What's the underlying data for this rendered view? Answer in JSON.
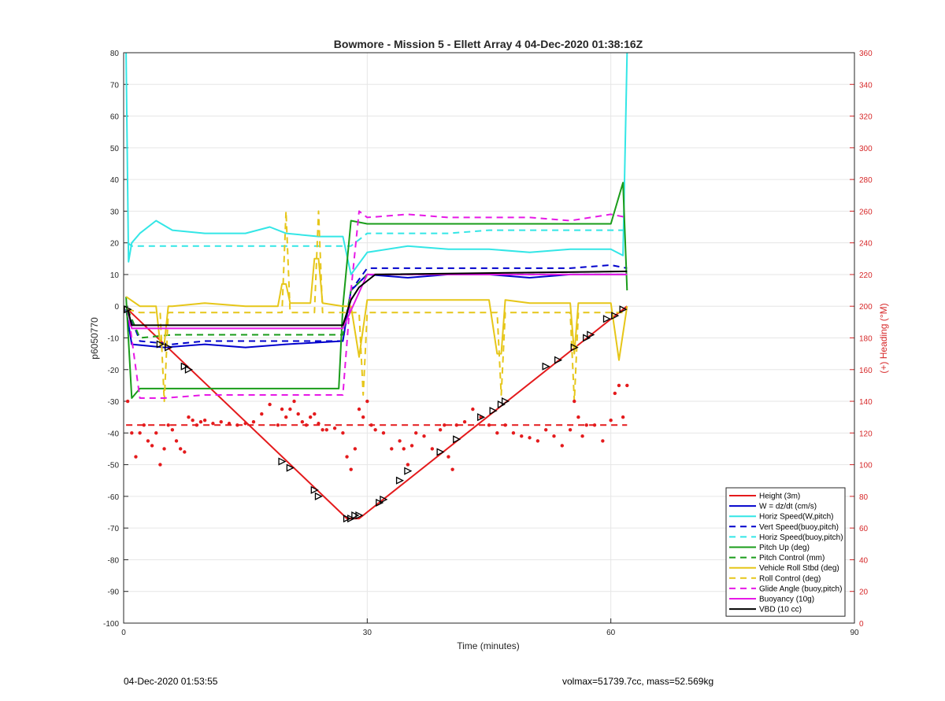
{
  "footer": {
    "left": "04-Dec-2020 01:53:55",
    "right": "volmax=51739.7cc, mass=52.569kg"
  },
  "chart_data": {
    "type": "line",
    "title": "Bowmore - Mission 5 - Ellett Array 4 04-Dec-2020 01:38:16Z",
    "xlabel": "Time (minutes)",
    "ylabel": "p6050770",
    "y2label": "(+) Heading (°M)",
    "xlim": [
      0,
      90
    ],
    "ylim": [
      -100,
      80
    ],
    "y2lim": [
      0,
      360
    ],
    "xticks": [
      0,
      30,
      60,
      90
    ],
    "yticks": [
      -100,
      -90,
      -80,
      -70,
      -60,
      -50,
      -40,
      -30,
      -20,
      -10,
      0,
      10,
      20,
      30,
      40,
      50,
      60,
      70,
      80
    ],
    "y2ticks": [
      0,
      20,
      40,
      60,
      80,
      100,
      120,
      140,
      160,
      180,
      200,
      220,
      240,
      260,
      280,
      300,
      320,
      340,
      360
    ],
    "grid": true,
    "legend_position": "bottom-right",
    "colors": {
      "red": "#e41a1c",
      "blue": "#0000cc",
      "cyan": "#33e6e6",
      "green": "#1a9c1a",
      "yellow": "#e6c619",
      "magenta": "#e619e6",
      "black": "#000000"
    },
    "series": [
      {
        "name": "Height (3m)",
        "color": "red",
        "style": "solid",
        "x": [
          0.5,
          27.5,
          29,
          62
        ],
        "y": [
          -1,
          -67,
          -67,
          0
        ]
      },
      {
        "name": "W = dz/dt (cm/s)",
        "color": "blue",
        "style": "solid",
        "x": [
          0.3,
          1,
          5,
          10,
          15,
          20,
          27,
          28,
          30,
          35,
          40,
          45,
          50,
          55,
          58,
          62
        ],
        "y": [
          -1,
          -12,
          -13,
          -12,
          -13,
          -12,
          -11,
          5,
          10,
          9,
          10,
          10,
          9,
          10,
          10,
          10
        ]
      },
      {
        "name": "Horiz Speed(W,pitch)",
        "color": "cyan",
        "style": "solid",
        "x": [
          0.3,
          0.6,
          1,
          2,
          4,
          6,
          10,
          15,
          18,
          20,
          24,
          27,
          28,
          30,
          35,
          40,
          45,
          50,
          55,
          60,
          61.5,
          62
        ],
        "y": [
          80,
          14,
          20,
          23,
          27,
          24,
          23,
          23,
          25,
          23,
          22,
          22,
          10,
          17,
          19,
          18,
          18,
          17,
          18,
          18,
          16,
          80
        ]
      },
      {
        "name": "Vert Speed(buoy,pitch)",
        "color": "blue",
        "style": "dashed",
        "x": [
          0.5,
          2,
          6,
          10,
          15,
          20,
          27,
          28,
          30,
          35,
          40,
          45,
          50,
          55,
          60,
          62
        ],
        "y": [
          -1,
          -11,
          -12,
          -11,
          -11,
          -11,
          -11,
          5,
          12,
          12,
          12,
          12,
          12,
          12,
          13,
          12
        ]
      },
      {
        "name": "Horiz Speed(buoy,pitch)",
        "color": "cyan",
        "style": "dashed",
        "x": [
          0.5,
          1,
          5,
          10,
          15,
          20,
          27,
          28,
          30,
          35,
          40,
          45,
          50,
          55,
          60,
          62
        ],
        "y": [
          20,
          19,
          19,
          19,
          19,
          19,
          19,
          19,
          23,
          23,
          23,
          24,
          24,
          24,
          24,
          24
        ]
      },
      {
        "name": "Pitch Up (deg)",
        "color": "green",
        "style": "solid",
        "x": [
          0.3,
          1,
          2,
          5,
          10,
          15,
          20,
          26.5,
          27,
          28,
          30,
          35,
          40,
          45,
          50,
          55,
          60,
          61.5,
          62
        ],
        "y": [
          3,
          -29,
          -26,
          -26,
          -26,
          -26,
          -26,
          -26,
          0,
          27,
          26,
          26,
          26,
          26,
          26,
          26,
          26,
          39,
          5
        ]
      },
      {
        "name": "Pitch Control (mm)",
        "color": "green",
        "style": "dashed",
        "x": [
          0.5,
          2,
          6,
          10,
          15,
          20,
          27,
          28,
          30,
          35,
          40,
          45,
          50,
          55,
          60,
          62
        ],
        "y": [
          -1,
          -10,
          -9,
          -9,
          -9,
          -9,
          -9,
          5,
          10,
          10,
          10,
          10,
          10,
          10,
          10,
          10
        ]
      },
      {
        "name": "Vehicle Roll Stbd (deg)",
        "color": "yellow",
        "style": "solid",
        "x": [
          0.3,
          2,
          4,
          4.5,
          5,
          5.5,
          6,
          10,
          15,
          19,
          19.5,
          20,
          20.5,
          23,
          23.5,
          24,
          24.5,
          27,
          28,
          29,
          30,
          35,
          40,
          45,
          46,
          46.5,
          47,
          50,
          55,
          55.5,
          56,
          60,
          61,
          62
        ],
        "y": [
          3,
          0,
          0,
          -12,
          -12,
          0,
          0,
          1,
          0,
          0,
          7,
          7,
          1,
          1,
          15,
          15,
          1,
          0,
          0,
          -16,
          2,
          2,
          2,
          2,
          -15,
          -15,
          2,
          1,
          1,
          -15,
          1,
          1,
          -17,
          0
        ]
      },
      {
        "name": "Roll Control (deg)",
        "color": "yellow",
        "style": "dashed",
        "x": [
          0.5,
          2,
          4.5,
          5,
          5.5,
          10,
          15,
          19.5,
          20,
          20.5,
          23.5,
          24,
          24.5,
          27,
          29,
          29.5,
          30,
          35,
          40,
          46,
          46.5,
          47,
          50,
          55,
          55.5,
          56,
          61,
          62
        ],
        "y": [
          -1,
          -2,
          -2,
          -30,
          -2,
          -2,
          -2,
          -2,
          30,
          -2,
          -2,
          30,
          -2,
          -2,
          -2,
          -28,
          -2,
          -2,
          -2,
          -2,
          -28,
          -2,
          -2,
          -2,
          -30,
          -2,
          -2,
          -2
        ]
      },
      {
        "name": "Glide Angle (buoy,pitch)",
        "color": "magenta",
        "style": "dashed",
        "x": [
          0.5,
          2,
          5,
          10,
          15,
          20,
          27,
          28,
          29,
          30,
          35,
          40,
          45,
          50,
          55,
          60,
          62
        ],
        "y": [
          -1,
          -29,
          -29,
          -28,
          -28,
          -28,
          -28,
          5,
          30,
          28,
          29,
          28,
          28,
          28,
          27,
          29,
          28
        ]
      },
      {
        "name": "Buoyancy (10g)",
        "color": "magenta",
        "style": "solid",
        "x": [
          0.5,
          1,
          27,
          30,
          62
        ],
        "y": [
          -1,
          -7,
          -7,
          10,
          10
        ]
      },
      {
        "name": "VBD (10 cc)",
        "color": "black",
        "style": "solid",
        "x": [
          0.5,
          1,
          27,
          28,
          29,
          31,
          62
        ],
        "y": [
          -1,
          -6,
          -6,
          2,
          6,
          10,
          11
        ]
      },
      {
        "name": "",
        "color": "red",
        "style": "dashed",
        "axis": "right",
        "x": [
          0.3,
          62
        ],
        "y": [
          125,
          125
        ]
      }
    ],
    "heading_points": {
      "axis": "right",
      "color": "red",
      "marker": "dot",
      "x": [
        0.5,
        1,
        1.5,
        2,
        2.5,
        3,
        3.5,
        4,
        4.5,
        5,
        5.5,
        6,
        6.5,
        7,
        7.5,
        8,
        8.5,
        9,
        9.5,
        10,
        11,
        12,
        13,
        14,
        15,
        16,
        17,
        18,
        19,
        19.5,
        20,
        20.5,
        21,
        21.5,
        22,
        22.5,
        23,
        23.5,
        24,
        24.5,
        25,
        26,
        27,
        27.5,
        28,
        28.5,
        29,
        29.5,
        30,
        30.5,
        31,
        32,
        33,
        34,
        34.5,
        35,
        35.5,
        36,
        37,
        38,
        39,
        39.5,
        40,
        40.5,
        41,
        42,
        43,
        44,
        45,
        46,
        47,
        48,
        49,
        50,
        51,
        52,
        53,
        54,
        55,
        55.5,
        56,
        56.5,
        57,
        58,
        59,
        60,
        60.5,
        61,
        61.5,
        62
      ],
      "y": [
        140,
        120,
        105,
        120,
        125,
        115,
        112,
        120,
        100,
        110,
        125,
        122,
        115,
        110,
        108,
        130,
        128,
        125,
        127,
        128,
        126,
        127,
        126,
        125,
        126,
        127,
        132,
        138,
        125,
        135,
        130,
        135,
        140,
        132,
        127,
        125,
        130,
        132,
        126,
        122,
        122,
        123,
        120,
        105,
        97,
        110,
        135,
        130,
        140,
        125,
        122,
        120,
        110,
        115,
        110,
        100,
        112,
        120,
        118,
        110,
        122,
        125,
        105,
        97,
        125,
        127,
        135,
        130,
        125,
        120,
        125,
        120,
        118,
        117,
        115,
        122,
        118,
        112,
        122,
        140,
        130,
        118,
        125,
        125,
        115,
        128,
        145,
        150,
        130,
        150
      ]
    },
    "triangle_markers": {
      "color": "black",
      "x": [
        0.5,
        4.5,
        5.5,
        7.5,
        8,
        19.5,
        20.5,
        23.5,
        24,
        27.5,
        28,
        28.5,
        29,
        31.5,
        32,
        34,
        35,
        39,
        41,
        44,
        45.5,
        46.5,
        47,
        52,
        53.5,
        55.5,
        57,
        57.5,
        59.5,
        60.5,
        61.5
      ],
      "y": [
        -1,
        -12,
        -13,
        -19,
        -20,
        -49,
        -51,
        -58,
        -60,
        -67,
        -67,
        -66,
        -66,
        -62,
        -61,
        -55,
        -52,
        -46,
        -42,
        -35,
        -33,
        -31,
        -30,
        -19,
        -17,
        -13,
        -10,
        -9,
        -4,
        -3,
        -1
      ]
    }
  }
}
